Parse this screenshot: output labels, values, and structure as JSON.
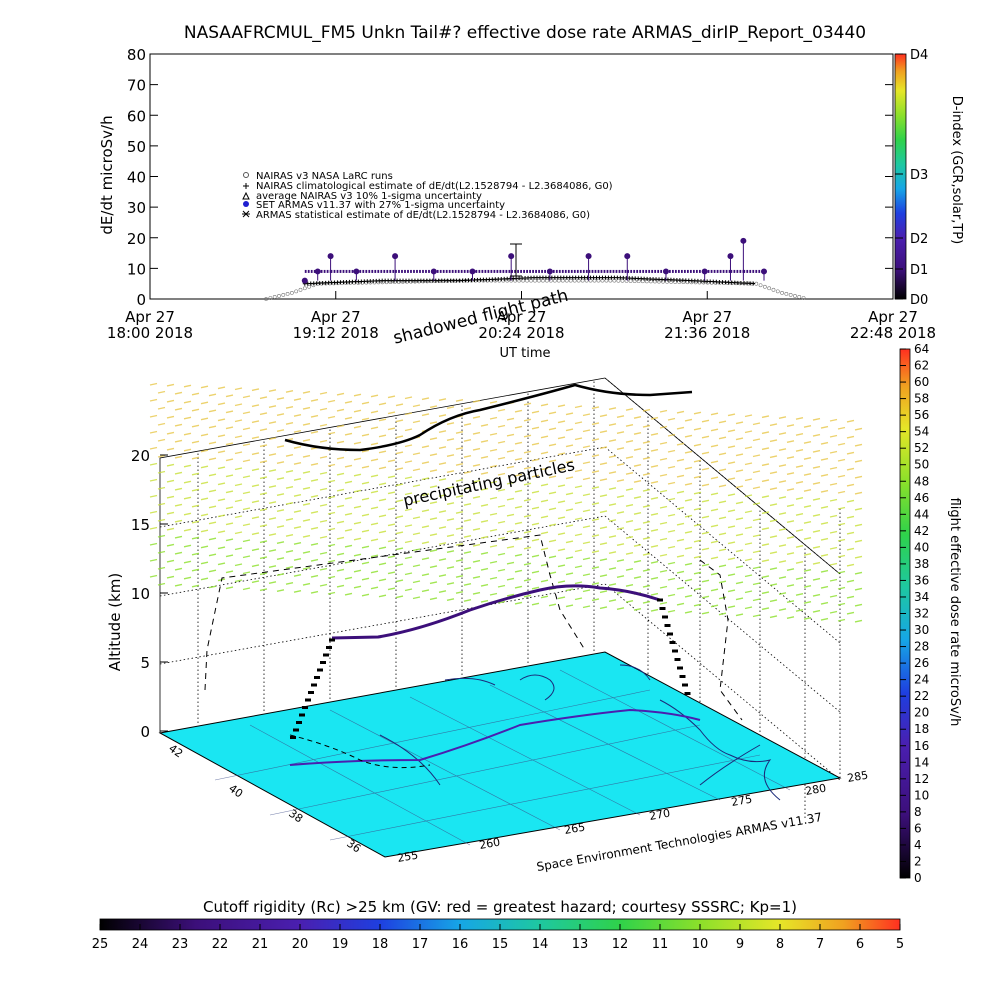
{
  "title": "NASAAFRCMUL_FM5 Unkn Tail#? effective dose rate ARMAS_dirIP_Report_03440",
  "colors": {
    "spectrum": [
      "#000000",
      "#3c0f7a",
      "#4a1fb0",
      "#1e3fe0",
      "#16a6e6",
      "#1ec8a0",
      "#2fd24a",
      "#8ce02a",
      "#e6e628",
      "#f0a020",
      "#ff3020"
    ]
  },
  "top_panel": {
    "ylabel": "dE/dt microSv/h",
    "xlabel": "UT time",
    "ylim": [
      0,
      80
    ],
    "yticks": [
      "0",
      "10",
      "20",
      "30",
      "40",
      "50",
      "60",
      "70",
      "80"
    ],
    "xticks": [
      {
        "l1": "Apr 27",
        "l2": "18:00 2018"
      },
      {
        "l1": "Apr 27",
        "l2": "19:12 2018"
      },
      {
        "l1": "Apr 27",
        "l2": "20:24 2018"
      },
      {
        "l1": "Apr 27",
        "l2": "21:36 2018"
      },
      {
        "l1": "Apr 27",
        "l2": "22:48 2018"
      }
    ],
    "legend": [
      "NAIRAS v3 NASA LaRC runs",
      "NAIRAS climatological estimate of dE/dt(L2.1528794 - L2.3684086, G0)",
      "average NAIRAS v3 10% 1-sigma uncertainty",
      "SET ARMAS v11.37 with 27% 1-sigma uncertainty",
      "ARMAS statistical estimate of dE/dt(L2.1528794 - L2.3684086, G0)"
    ],
    "right_axis": {
      "label": "D-index (GCR,solar,TP)",
      "ticks": [
        "D0",
        "D1",
        "D2",
        "D3",
        "D4"
      ]
    }
  },
  "chart_data": {
    "type": "scatter",
    "title": "NASAAFRCMUL_FM5 Unkn Tail#? effective dose rate ARMAS_dirIP_Report_03440",
    "xlabel": "UT time",
    "ylabel": "dE/dt microSv/h",
    "xlim": [
      "2018-04-27 18:00",
      "2018-04-27 22:48"
    ],
    "ylim": [
      0,
      80
    ],
    "grid": false,
    "series": [
      {
        "name": "SET ARMAS v11.37 with 27% 1-sigma uncertainty",
        "points": [
          [
            "2018-04-27 19:00",
            6
          ],
          [
            "2018-04-27 19:05",
            9
          ],
          [
            "2018-04-27 19:10",
            14
          ],
          [
            "2018-04-27 19:20",
            9
          ],
          [
            "2018-04-27 19:35",
            14
          ],
          [
            "2018-04-27 19:50",
            9
          ],
          [
            "2018-04-27 20:05",
            9
          ],
          [
            "2018-04-27 20:20",
            14
          ],
          [
            "2018-04-27 20:35",
            9
          ],
          [
            "2018-04-27 20:50",
            14
          ],
          [
            "2018-04-27 21:05",
            14
          ],
          [
            "2018-04-27 21:20",
            9
          ],
          [
            "2018-04-27 21:35",
            9
          ],
          [
            "2018-04-27 21:45",
            14
          ],
          [
            "2018-04-27 21:50",
            19
          ],
          [
            "2018-04-27 21:58",
            9
          ]
        ]
      },
      {
        "name": "ARMAS statistical estimate of dE/dt(L2.1528794 - L2.3684086, G0)",
        "points": [
          [
            "2018-04-27 19:00",
            5
          ],
          [
            "2018-04-27 19:30",
            6
          ],
          [
            "2018-04-27 20:00",
            6
          ],
          [
            "2018-04-27 20:30",
            7
          ],
          [
            "2018-04-27 21:00",
            7
          ],
          [
            "2018-04-27 21:30",
            6
          ],
          [
            "2018-04-27 21:55",
            5
          ]
        ]
      },
      {
        "name": "NAIRAS v3 NASA LaRC runs",
        "points": [
          [
            "2018-04-27 18:45",
            0
          ],
          [
            "2018-04-27 18:55",
            2
          ],
          [
            "2018-04-27 19:05",
            5
          ],
          [
            "2018-04-27 20:00",
            6
          ],
          [
            "2018-04-27 21:00",
            6
          ],
          [
            "2018-04-27 21:55",
            5
          ],
          [
            "2018-04-27 22:05",
            2
          ],
          [
            "2018-04-27 22:15",
            0
          ]
        ]
      }
    ]
  },
  "d_colorbar": {
    "range": [
      0,
      4
    ]
  },
  "main_3d": {
    "ylabel": "Altitude (km)",
    "zticks": [
      "0",
      "5",
      "10",
      "15",
      "20"
    ],
    "lat_ticks": [
      "42",
      "40",
      "38",
      "36"
    ],
    "lon_ticks": [
      "255",
      "260",
      "265",
      "270",
      "275",
      "280",
      "285"
    ],
    "annotations": {
      "shadowed": "shadowed flight path",
      "precip": "precipitating particles",
      "credit": "Space Environment Technologies ARMAS v11.37"
    }
  },
  "right_colorbar": {
    "label": "flight effective dose rate microSv/h",
    "range": [
      0,
      64
    ],
    "ticks": [
      "0",
      "2",
      "4",
      "6",
      "8",
      "10",
      "12",
      "14",
      "16",
      "18",
      "20",
      "22",
      "24",
      "26",
      "28",
      "30",
      "32",
      "34",
      "36",
      "38",
      "40",
      "42",
      "44",
      "46",
      "48",
      "50",
      "52",
      "54",
      "56",
      "58",
      "60",
      "62",
      "64"
    ]
  },
  "bottom_colorbar": {
    "label": "Cutoff rigidity (Rc) >25 km (GV: red = greatest hazard; courtesy SSSRC; Kp=1)",
    "ticks": [
      "25",
      "24",
      "23",
      "22",
      "21",
      "20",
      "19",
      "18",
      "17",
      "16",
      "15",
      "14",
      "13",
      "12",
      "11",
      "10",
      "9",
      "8",
      "7",
      "6",
      "5"
    ]
  }
}
